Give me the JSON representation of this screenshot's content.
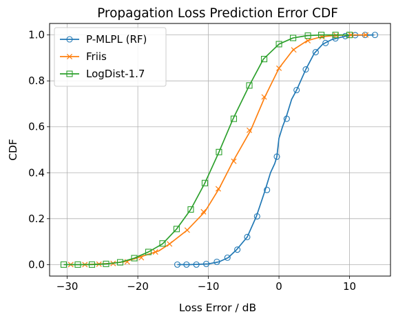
{
  "chart_data": {
    "type": "line",
    "title": "Propagation Loss Prediction Error CDF",
    "xlabel": "Loss Error / dB",
    "ylabel": "CDF",
    "xlim": [
      -32.5,
      15.8
    ],
    "ylim": [
      -0.05,
      1.05
    ],
    "xticks": [
      -30,
      -20,
      -10,
      0,
      10
    ],
    "xtick_labels": [
      "−30",
      "−20",
      "−10",
      "0",
      "10"
    ],
    "yticks": [
      0.0,
      0.2,
      0.4,
      0.6,
      0.8,
      1.0
    ],
    "ytick_labels": [
      "0.0",
      "0.2",
      "0.4",
      "0.6",
      "0.8",
      "1.0"
    ],
    "grid": true,
    "legend_position": "upper-left",
    "series": [
      {
        "name": "P-MLPL (RF)",
        "color": "#1f77b4",
        "marker": "circle-open",
        "line": [
          [
            -14.4,
            0.0
          ],
          [
            -12.5,
            0.0
          ],
          [
            -10,
            0.003
          ],
          [
            -8.5,
            0.012
          ],
          [
            -7.2,
            0.03
          ],
          [
            -6,
            0.065
          ],
          [
            -4.5,
            0.12
          ],
          [
            -3.2,
            0.21
          ],
          [
            -2,
            0.32
          ],
          [
            -1.2,
            0.4
          ],
          [
            -0.6,
            0.44
          ],
          [
            -0.3,
            0.47
          ],
          [
            0,
            0.55
          ],
          [
            0.5,
            0.6
          ],
          [
            1,
            0.64
          ],
          [
            1.8,
            0.72
          ],
          [
            2.5,
            0.76
          ],
          [
            3.8,
            0.85
          ],
          [
            5,
            0.92
          ],
          [
            6.2,
            0.96
          ],
          [
            7.5,
            0.98
          ],
          [
            8.8,
            0.99
          ],
          [
            10,
            0.998
          ],
          [
            13.5,
            1.0
          ]
        ],
        "markers": [
          [
            -14.4,
            0.0
          ],
          [
            -13.1,
            0.0
          ],
          [
            -11.7,
            0.0
          ],
          [
            -10.3,
            0.003
          ],
          [
            -8.8,
            0.012
          ],
          [
            -7.3,
            0.03
          ],
          [
            -5.9,
            0.065
          ],
          [
            -4.5,
            0.12
          ],
          [
            -3.1,
            0.21
          ],
          [
            -1.7,
            0.325
          ],
          [
            -0.3,
            0.47
          ],
          [
            1.1,
            0.635
          ],
          [
            2.5,
            0.76
          ],
          [
            3.8,
            0.85
          ],
          [
            5.2,
            0.925
          ],
          [
            6.6,
            0.965
          ],
          [
            8.0,
            0.985
          ],
          [
            9.4,
            0.995
          ],
          [
            10.8,
            0.999
          ],
          [
            12.2,
            1.0
          ],
          [
            13.6,
            1.0
          ]
        ]
      },
      {
        "name": "Friis",
        "color": "#ff7f0e",
        "marker": "x",
        "line": [
          [
            -29.5,
            0.0
          ],
          [
            -28,
            0.0
          ],
          [
            -26,
            0.002
          ],
          [
            -24,
            0.005
          ],
          [
            -22,
            0.012
          ],
          [
            -20.5,
            0.025
          ],
          [
            -19,
            0.04
          ],
          [
            -17,
            0.06
          ],
          [
            -15.5,
            0.09
          ],
          [
            -13,
            0.15
          ],
          [
            -10.5,
            0.23
          ],
          [
            -8.5,
            0.33
          ],
          [
            -6.5,
            0.45
          ],
          [
            -4,
            0.585
          ],
          [
            -2,
            0.73
          ],
          [
            0,
            0.855
          ],
          [
            2,
            0.935
          ],
          [
            4,
            0.975
          ],
          [
            6,
            0.992
          ],
          [
            8,
            0.998
          ],
          [
            10,
            1.0
          ],
          [
            12.5,
            1.0
          ]
        ],
        "markers": [
          [
            -29.5,
            0.0
          ],
          [
            -27.5,
            0.0
          ],
          [
            -25.5,
            0.002
          ],
          [
            -23.5,
            0.005
          ],
          [
            -21.5,
            0.012
          ],
          [
            -19.5,
            0.03
          ],
          [
            -17.5,
            0.055
          ],
          [
            -15.5,
            0.09
          ],
          [
            -13.0,
            0.15
          ],
          [
            -10.7,
            0.23
          ],
          [
            -8.6,
            0.33
          ],
          [
            -6.4,
            0.45
          ],
          [
            -4.2,
            0.585
          ],
          [
            -2.1,
            0.73
          ],
          [
            0.0,
            0.855
          ],
          [
            2.1,
            0.935
          ],
          [
            4.1,
            0.975
          ],
          [
            6.1,
            0.992
          ],
          [
            8.1,
            0.998
          ],
          [
            10.2,
            1.0
          ],
          [
            12.3,
            1.0
          ]
        ]
      },
      {
        "name": "LogDist-1.7",
        "color": "#2ca02c",
        "marker": "square-open",
        "line": [
          [
            -30.5,
            0.0
          ],
          [
            -28.5,
            0.0
          ],
          [
            -26.5,
            0.0
          ],
          [
            -24.5,
            0.003
          ],
          [
            -22.5,
            0.01
          ],
          [
            -20.5,
            0.028
          ],
          [
            -18.5,
            0.055
          ],
          [
            -16.5,
            0.09
          ],
          [
            -14.5,
            0.155
          ],
          [
            -12.5,
            0.24
          ],
          [
            -10.5,
            0.355
          ],
          [
            -8.5,
            0.49
          ],
          [
            -6.5,
            0.635
          ],
          [
            -4.2,
            0.78
          ],
          [
            -2.2,
            0.895
          ],
          [
            0,
            0.96
          ],
          [
            2,
            0.987
          ],
          [
            4,
            0.997
          ],
          [
            6,
            1.0
          ],
          [
            10,
            1.0
          ]
        ],
        "markers": [
          [
            -30.5,
            0.0
          ],
          [
            -28.5,
            0.0
          ],
          [
            -26.5,
            0.0
          ],
          [
            -24.5,
            0.003
          ],
          [
            -22.5,
            0.01
          ],
          [
            -20.5,
            0.028
          ],
          [
            -18.5,
            0.055
          ],
          [
            -16.5,
            0.092
          ],
          [
            -14.5,
            0.155
          ],
          [
            -12.5,
            0.24
          ],
          [
            -10.5,
            0.355
          ],
          [
            -8.5,
            0.49
          ],
          [
            -6.4,
            0.635
          ],
          [
            -4.2,
            0.78
          ],
          [
            -2.1,
            0.895
          ],
          [
            0.0,
            0.96
          ],
          [
            2.0,
            0.987
          ],
          [
            4.1,
            0.997
          ],
          [
            6.0,
            1.0
          ],
          [
            8.0,
            1.0
          ],
          [
            10.0,
            1.0
          ]
        ]
      }
    ]
  }
}
